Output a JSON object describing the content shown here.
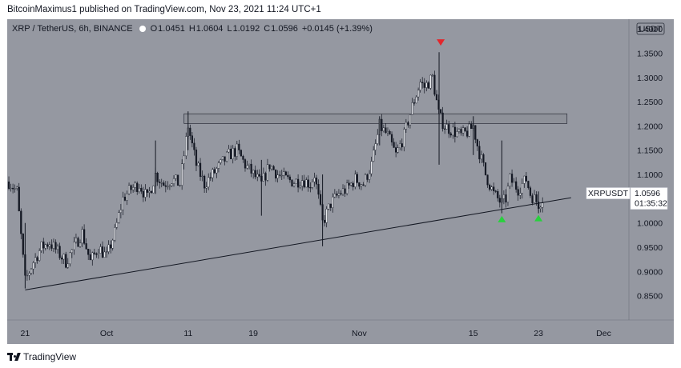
{
  "publisher_line": "BitcoinMaximus1 published on TradingView.com, Nov 23, 2021 11:24 UTC+1",
  "legend": {
    "symbol": "XRP / TetherUS, 6h, BINANCE",
    "open_key": "O",
    "open": "1.0451",
    "high_key": "H",
    "high": "1.0604",
    "low_key": "L",
    "low": "1.0192",
    "close_key": "C",
    "close": "1.0596",
    "change": "+0.0145 (+1.39%)"
  },
  "currency_label": "USDT",
  "price_tag": {
    "symbol": "XRPUSDT",
    "price": "1.0596",
    "countdown": "01:35:32"
  },
  "footer": {
    "brand": "TradingView"
  },
  "colors": {
    "background": "#9598a1",
    "candle": "#131722",
    "trendline": "#131722",
    "resistance_box": "#8e9199",
    "marker_top": "#e3262c",
    "marker_bottom": "#28d13d",
    "axis_text": "#131722"
  },
  "chart_data": {
    "type": "candlestick",
    "title": "XRP / TetherUS, 6h, BINANCE",
    "xlabel": "",
    "ylabel": "",
    "ylim": [
      0.8,
      1.42
    ],
    "y_ticks": [
      "1.4000",
      "1.3500",
      "1.3000",
      "1.2500",
      "1.2000",
      "1.1500",
      "1.1000",
      "1.0500",
      "1.0000",
      "0.9500",
      "0.9000",
      "0.8500"
    ],
    "x_ticks": [
      {
        "label": "21",
        "day": 21
      },
      {
        "label": "Oct",
        "day": 31
      },
      {
        "label": "11",
        "day": 41
      },
      {
        "label": "19",
        "day": 49
      },
      {
        "label": "Nov",
        "day": 62
      },
      {
        "label": "15",
        "day": 76
      },
      {
        "label": "23",
        "day": 84
      },
      {
        "label": "Dec",
        "day": 92
      }
    ],
    "price_path": [
      [
        19.0,
        1.085
      ],
      [
        20.0,
        1.065
      ],
      [
        21.0,
        0.88
      ],
      [
        22.0,
        0.92
      ],
      [
        23.0,
        0.95
      ],
      [
        24.0,
        0.96
      ],
      [
        25.0,
        0.94
      ],
      [
        26.0,
        0.92
      ],
      [
        27.0,
        0.95
      ],
      [
        28.0,
        0.98
      ],
      [
        29.0,
        0.92
      ],
      [
        30.0,
        0.95
      ],
      [
        31.0,
        0.93
      ],
      [
        32.0,
        0.98
      ],
      [
        33.0,
        1.05
      ],
      [
        34.0,
        1.07
      ],
      [
        35.0,
        1.08
      ],
      [
        36.0,
        1.05
      ],
      [
        37.0,
        1.1
      ],
      [
        38.0,
        1.08
      ],
      [
        39.0,
        1.09
      ],
      [
        40.0,
        1.08
      ],
      [
        41.0,
        1.2
      ],
      [
        42.0,
        1.12
      ],
      [
        43.0,
        1.08
      ],
      [
        44.0,
        1.1
      ],
      [
        45.0,
        1.12
      ],
      [
        46.0,
        1.14
      ],
      [
        47.0,
        1.15
      ],
      [
        48.0,
        1.12
      ],
      [
        49.0,
        1.1
      ],
      [
        50.0,
        1.08
      ],
      [
        51.0,
        1.12
      ],
      [
        52.0,
        1.1
      ],
      [
        53.0,
        1.09
      ],
      [
        54.0,
        1.085
      ],
      [
        55.0,
        1.09
      ],
      [
        56.0,
        1.08
      ],
      [
        56.5,
        1.1
      ],
      [
        57.5,
        1.0
      ],
      [
        58.5,
        1.04
      ],
      [
        59.5,
        1.06
      ],
      [
        60.5,
        1.07
      ],
      [
        61.5,
        1.09
      ],
      [
        62.5,
        1.08
      ],
      [
        63.5,
        1.12
      ],
      [
        64.5,
        1.2
      ],
      [
        65.5,
        1.18
      ],
      [
        66.5,
        1.14
      ],
      [
        67.5,
        1.18
      ],
      [
        68.5,
        1.24
      ],
      [
        69.5,
        1.29
      ],
      [
        70.0,
        1.28
      ],
      [
        71.0,
        1.3
      ],
      [
        71.8,
        1.22
      ],
      [
        72.5,
        1.2
      ],
      [
        73.5,
        1.19
      ],
      [
        74.5,
        1.18
      ],
      [
        75.5,
        1.19
      ],
      [
        76.0,
        1.2
      ],
      [
        76.5,
        1.16
      ],
      [
        77.5,
        1.1
      ],
      [
        78.5,
        1.06
      ],
      [
        79.5,
        1.04
      ],
      [
        80.0,
        1.05
      ],
      [
        80.5,
        1.09
      ],
      [
        81.5,
        1.07
      ],
      [
        82.5,
        1.09
      ],
      [
        83.0,
        1.06
      ],
      [
        84.0,
        1.04
      ],
      [
        84.5,
        1.05
      ]
    ],
    "wicks": [
      {
        "day": 21.0,
        "high": 1.0,
        "low": 0.865
      },
      {
        "day": 37.0,
        "high": 1.17,
        "low": 1.06
      },
      {
        "day": 41.0,
        "high": 1.23,
        "low": 1.15
      },
      {
        "day": 50.0,
        "high": 1.13,
        "low": 1.015
      },
      {
        "day": 57.5,
        "high": 1.1,
        "low": 0.952
      },
      {
        "day": 64.5,
        "high": 1.22,
        "low": 1.16
      },
      {
        "day": 71.8,
        "high": 1.352,
        "low": 1.12
      },
      {
        "day": 76.0,
        "high": 1.22,
        "low": 1.14
      },
      {
        "day": 79.5,
        "high": 1.17,
        "low": 1.02
      },
      {
        "day": 84.0,
        "high": 1.065,
        "low": 1.02
      }
    ],
    "trendline": [
      [
        21.0,
        0.862
      ],
      [
        88.0,
        1.052
      ]
    ],
    "resistance_zone": {
      "day_start": 40.5,
      "day_end": 87.5,
      "price_low": 1.205,
      "price_high": 1.225
    },
    "markers": [
      {
        "type": "down-triangle",
        "day": 72.0,
        "price": 1.372,
        "color": "#e3262c"
      },
      {
        "type": "up-triangle",
        "day": 79.5,
        "price": 1.008,
        "color": "#28d13d"
      },
      {
        "type": "up-triangle",
        "day": 84.0,
        "price": 1.01,
        "color": "#28d13d"
      }
    ],
    "last_price": 1.0596,
    "grid": false,
    "legend_position": "top-left"
  }
}
